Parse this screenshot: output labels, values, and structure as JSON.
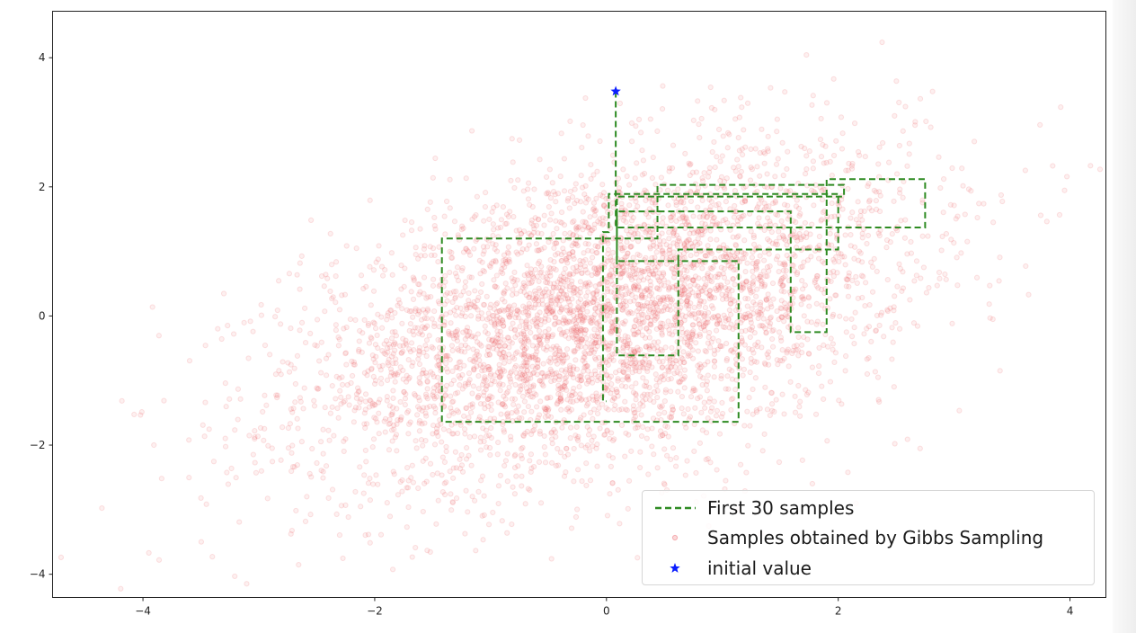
{
  "chart_data": {
    "type": "scatter",
    "title": "",
    "xlabel": "",
    "ylabel": "",
    "xlim": [
      -4.78,
      4.31
    ],
    "ylim": [
      -4.36,
      4.72
    ],
    "xticks": [
      -4,
      -2,
      0,
      2,
      4
    ],
    "yticks": [
      -4,
      -2,
      0,
      2,
      4
    ],
    "xtick_labels": [
      "−4",
      "−2",
      "0",
      "2",
      "4"
    ],
    "ytick_labels": [
      "−4",
      "−2",
      "0",
      "2",
      "4"
    ],
    "grid": false,
    "legend_placement": "lower-right",
    "series": [
      {
        "name": "First 30 samples",
        "kind": "line",
        "style": "dashed",
        "color": "#2e8b22",
        "points": [
          [
            0.08,
            3.48
          ],
          [
            0.08,
            1.37
          ],
          [
            2.75,
            1.37
          ],
          [
            2.75,
            2.12
          ],
          [
            1.9,
            2.12
          ],
          [
            1.9,
            -0.25
          ],
          [
            1.59,
            -0.25
          ],
          [
            1.59,
            1.62
          ],
          [
            0.09,
            1.62
          ],
          [
            0.09,
            0.85
          ],
          [
            0.62,
            0.85
          ],
          [
            0.62,
            -0.61
          ],
          [
            0.09,
            -0.61
          ],
          [
            0.09,
            1.85
          ],
          [
            2.05,
            1.85
          ],
          [
            2.05,
            2.03
          ],
          [
            0.44,
            2.03
          ],
          [
            0.44,
            1.2
          ],
          [
            -1.42,
            1.2
          ],
          [
            -1.42,
            -1.64
          ],
          [
            1.14,
            -1.64
          ],
          [
            1.14,
            0.85
          ],
          [
            0.62,
            0.85
          ],
          [
            0.62,
            1.03
          ],
          [
            2.0,
            1.03
          ],
          [
            2.0,
            1.89
          ],
          [
            0.02,
            1.89
          ],
          [
            0.02,
            1.3
          ],
          [
            -0.03,
            1.3
          ],
          [
            -0.03,
            -1.32
          ],
          [
            0.0,
            -1.32
          ]
        ]
      },
      {
        "name": "Samples obtained by Gibbs Sampling",
        "kind": "scatter",
        "color": "#e8404a",
        "alpha": 0.15,
        "distribution": {
          "n": 4500,
          "mean": [
            0,
            0
          ],
          "cov": [
            [
              1.7,
              0.75
            ],
            [
              0.75,
              1.6
            ]
          ]
        }
      },
      {
        "name": "initial value",
        "kind": "marker",
        "marker": "star",
        "color": "#0b1eff",
        "points": [
          [
            0.08,
            3.48
          ]
        ]
      }
    ]
  }
}
